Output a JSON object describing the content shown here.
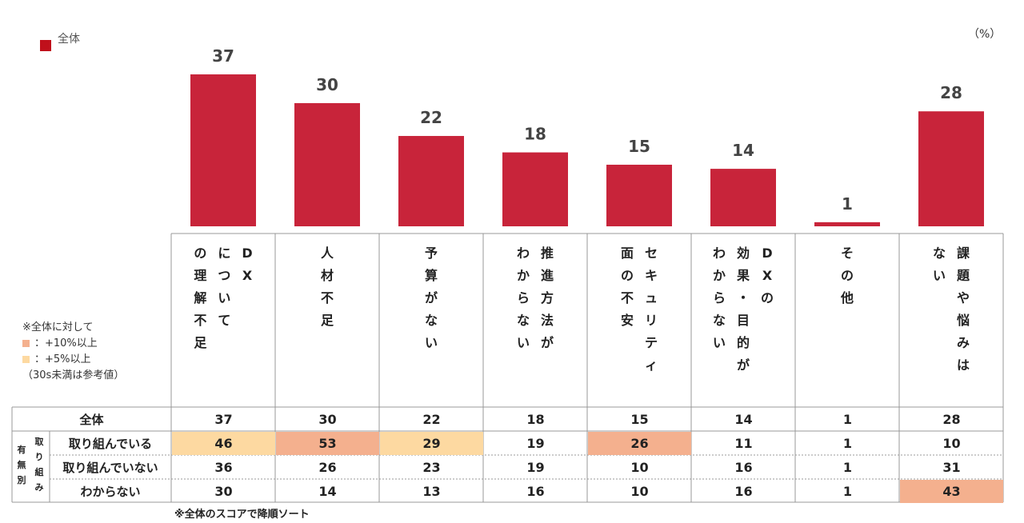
{
  "legend": {
    "label": "全体",
    "color": "#c0101b"
  },
  "unit": "（%）",
  "notes": {
    "title": "※全体に対して",
    "plus10": "：+10%以上",
    "plus5": "：+5%以上",
    "reference": "（30s未満は参考値）",
    "plus10_color": "#f4b08e",
    "plus5_color": "#fdd9a1"
  },
  "footnote": "※全体のスコアで降順ソート",
  "chart_data": {
    "type": "bar",
    "categories": [
      [
        "DX",
        "について",
        "の理解不足"
      ],
      [
        "人材不足"
      ],
      [
        "予算がない"
      ],
      [
        "推進方法が",
        "わからない"
      ],
      [
        "セキュリティ",
        "面の不安"
      ],
      [
        "DXの",
        "効果・目的が",
        "わからない"
      ],
      [
        "その他"
      ],
      [
        "課題や悩みは",
        "ない"
      ]
    ],
    "values": [
      37,
      30,
      22,
      18,
      15,
      14,
      1,
      28
    ],
    "bar_color": "#c8243a"
  },
  "table": {
    "side_label": [
      "有無別",
      "取り組み"
    ],
    "rows": [
      {
        "label": "全体",
        "values": [
          "37",
          "30",
          "22",
          "18",
          "15",
          "14",
          "1",
          "28"
        ],
        "highlights": [
          "",
          "",
          "",
          "",
          "",
          "",
          "",
          ""
        ]
      },
      {
        "label": "取り組んでいる",
        "values": [
          "46",
          "53",
          "29",
          "19",
          "26",
          "11",
          "1",
          "10"
        ],
        "highlights": [
          "plus5",
          "plus10",
          "plus5",
          "",
          "plus10",
          "",
          "",
          ""
        ]
      },
      {
        "label": "取り組んでいない",
        "values": [
          "36",
          "26",
          "23",
          "19",
          "10",
          "16",
          "1",
          "31"
        ],
        "highlights": [
          "",
          "",
          "",
          "",
          "",
          "",
          "",
          ""
        ]
      },
      {
        "label": "わからない",
        "values": [
          "30",
          "14",
          "13",
          "16",
          "10",
          "16",
          "1",
          "43"
        ],
        "highlights": [
          "",
          "",
          "",
          "",
          "",
          "",
          "",
          "plus10"
        ]
      }
    ]
  }
}
